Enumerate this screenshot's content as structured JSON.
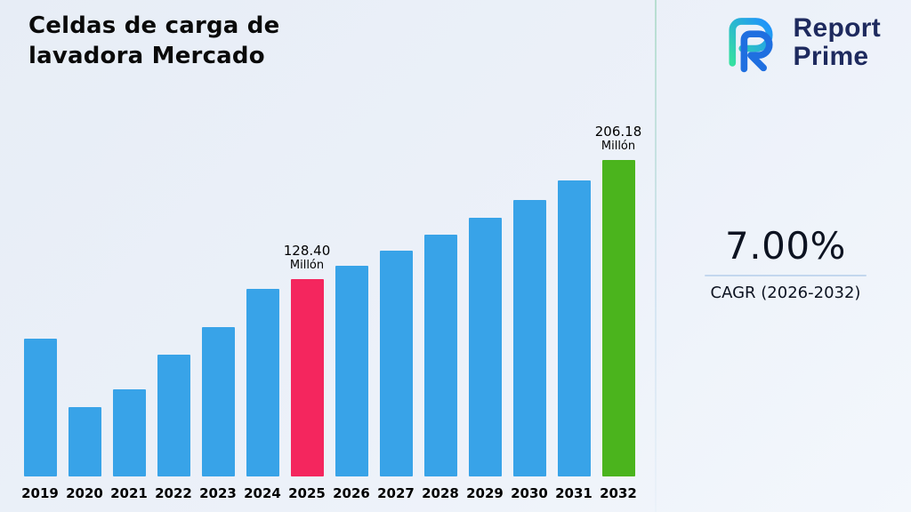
{
  "title_line1": "Celdas de carga de",
  "title_line2": "lavadora Mercado",
  "logo": {
    "brand_line1": "Report",
    "brand_line2": "Prime",
    "navy": "#1e2a5e",
    "blue": "#1f6fe0",
    "teal": "#35e0a1"
  },
  "stats": {
    "value": "7.00%",
    "caption": "CAGR (2026-2032)"
  },
  "chart_data": {
    "type": "bar",
    "title": "Celdas de carga de lavadora Mercado",
    "xlabel": "",
    "ylabel": "",
    "unit": "Millón",
    "grid": false,
    "legend": false,
    "ylim": [
      0,
      206.18
    ],
    "categories": [
      "2019",
      "2020",
      "2021",
      "2022",
      "2023",
      "2024",
      "2025",
      "2026",
      "2027",
      "2028",
      "2029",
      "2030",
      "2031",
      "2032"
    ],
    "values": [
      89.5,
      45.0,
      56.5,
      79.5,
      97.5,
      122.0,
      128.4,
      137.39,
      147.0,
      157.29,
      168.31,
      180.09,
      192.69,
      206.18
    ],
    "bar_color": "#38A3E8",
    "highlights": [
      {
        "index": 6,
        "color": "#F4265E",
        "label_value": "128.40",
        "label_unit": "Millón"
      },
      {
        "index": 13,
        "color": "#4BB41D",
        "label_value": "206.18",
        "label_unit": "Millón"
      }
    ]
  }
}
